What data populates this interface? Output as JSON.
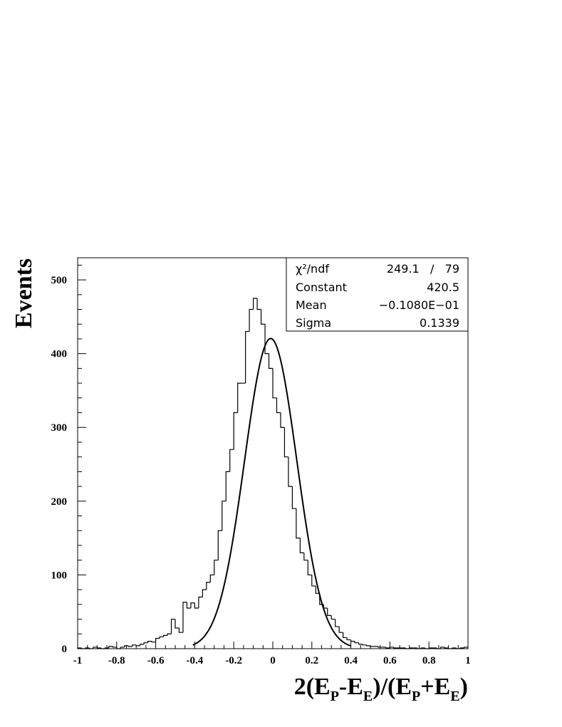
{
  "chart_data": {
    "type": "histogram",
    "ylabel": "Events",
    "xlabel": {
      "base": "2(E",
      "sub_p": "P",
      "minus": "-E",
      "sub_e": "E",
      "mid": ")/(E",
      "plus": "+E",
      "close": ")"
    },
    "xlim": [
      -1,
      1
    ],
    "ylim": [
      0,
      530
    ],
    "x_ticks": [
      -1,
      -0.8,
      -0.6,
      -0.4,
      -0.2,
      0,
      0.2,
      0.4,
      0.6,
      0.8,
      1
    ],
    "x_tick_labels": [
      "-1",
      "-0.8",
      "-0.6",
      "-0.4",
      "-0.2",
      "0",
      "0.2",
      "0.4",
      "0.6",
      "0.8",
      "1"
    ],
    "y_ticks": [
      0,
      100,
      200,
      300,
      400,
      500
    ],
    "y_tick_labels": [
      "0",
      "100",
      "200",
      "300",
      "400",
      "500"
    ],
    "bin_width": 0.02,
    "bin_start": -1,
    "histogram_counts": [
      1,
      0,
      1,
      0,
      2,
      1,
      0,
      1,
      3,
      2,
      0,
      2,
      4,
      3,
      5,
      4,
      6,
      8,
      10,
      9,
      14,
      16,
      18,
      20,
      40,
      28,
      22,
      63,
      55,
      62,
      55,
      70,
      80,
      90,
      100,
      120,
      160,
      200,
      240,
      270,
      320,
      360,
      360,
      430,
      460,
      475,
      460,
      440,
      400,
      380,
      340,
      320,
      300,
      260,
      220,
      190,
      150,
      130,
      120,
      100,
      85,
      75,
      60,
      55,
      45,
      40,
      30,
      22,
      15,
      12,
      10,
      8,
      6,
      5,
      4,
      3,
      3,
      2,
      2,
      1,
      2,
      1,
      1,
      1,
      0,
      1,
      1,
      0,
      1,
      0,
      1,
      1,
      0,
      2,
      1,
      0,
      1,
      0,
      1,
      2
    ],
    "fit": {
      "type": "gaussian",
      "constant": 420.5,
      "mean": -0.0108,
      "sigma": 0.1339,
      "x_range": [
        -0.41,
        0.4
      ]
    },
    "stats_box": {
      "rows": [
        {
          "label": "χ²/ndf",
          "value": "249.1   /   79"
        },
        {
          "label": "Constant",
          "value": "420.5"
        },
        {
          "label": "Mean",
          "value": "−0.1080E−01"
        },
        {
          "label": "Sigma",
          "value": "0.1339"
        }
      ]
    }
  }
}
